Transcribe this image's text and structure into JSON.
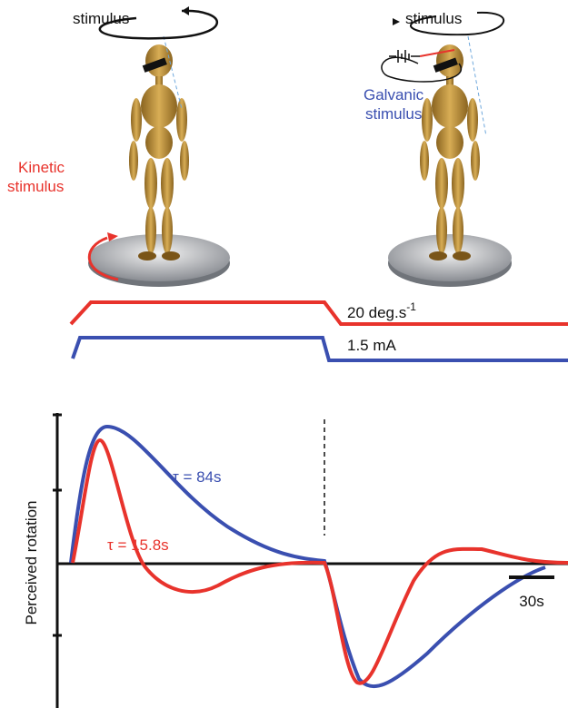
{
  "panels": {
    "kinetic": {
      "stimulus_label": "stimulus",
      "side_label": [
        "Kinetic",
        "stimulus"
      ]
    },
    "galvanic": {
      "stimulus_label": "stimulus",
      "side_label": [
        "Galvanic",
        "stimulus"
      ]
    }
  },
  "traces": {
    "kinetic": {
      "label": "20  deg.s",
      "exponent": "-1"
    },
    "galvanic": {
      "label": "1.5  mA"
    }
  },
  "plot": {
    "y_label": "Perceived  rotation",
    "galvanic_tau": "τ = 84s",
    "kinetic_tau": "τ = 15.8s",
    "scale_bar": "30s"
  }
}
